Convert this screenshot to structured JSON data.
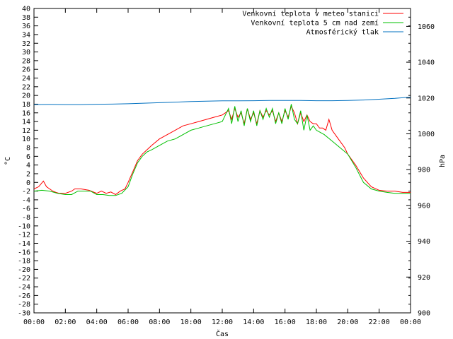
{
  "chart_data": {
    "type": "line",
    "xlabel": "Čas",
    "ylabel": "°C",
    "y2label": "hPa",
    "grid": false,
    "legend_position": "top-right",
    "x_ticks": [
      "00:00",
      "02:00",
      "04:00",
      "06:00",
      "08:00",
      "10:00",
      "12:00",
      "14:00",
      "16:00",
      "18:00",
      "20:00",
      "22:00",
      "00:00"
    ],
    "xlim_hours": [
      0,
      24
    ],
    "ylim": [
      -30,
      40
    ],
    "y_ticks": [
      -30,
      -28,
      -26,
      -24,
      -22,
      -20,
      -18,
      -16,
      -14,
      -12,
      -10,
      -8,
      -6,
      -4,
      -2,
      0,
      2,
      4,
      6,
      8,
      10,
      12,
      14,
      16,
      18,
      20,
      22,
      24,
      26,
      28,
      30,
      32,
      34,
      36,
      38,
      40
    ],
    "y2lim": [
      900,
      1070
    ],
    "y2_ticks": [
      900,
      920,
      940,
      960,
      980,
      1000,
      1020,
      1040,
      1060
    ],
    "series": [
      {
        "name": "Venkovní teplota v meteo stanici",
        "axis": "y",
        "color": "#ff0000",
        "x": [
          0,
          0.3,
          0.6,
          0.8,
          1.0,
          1.2,
          1.4,
          1.6,
          2.0,
          2.4,
          2.6,
          3.0,
          3.5,
          4.0,
          4.3,
          4.6,
          4.9,
          5.2,
          5.5,
          5.8,
          6.0,
          6.3,
          6.6,
          6.9,
          7.2,
          7.5,
          8.0,
          8.5,
          9.0,
          9.5,
          10.0,
          10.5,
          11.0,
          11.5,
          12.0,
          12.2,
          12.4,
          12.6,
          12.8,
          13.0,
          13.2,
          13.4,
          13.6,
          13.8,
          14.0,
          14.2,
          14.4,
          14.6,
          14.8,
          15.0,
          15.2,
          15.4,
          15.6,
          15.8,
          16.0,
          16.2,
          16.4,
          16.6,
          16.8,
          17.0,
          17.2,
          17.4,
          17.6,
          17.8,
          18.0,
          18.2,
          18.4,
          18.6,
          18.8,
          19.0,
          19.2,
          19.4,
          19.6,
          19.8,
          20.0,
          20.5,
          21.0,
          21.5,
          22.0,
          22.5,
          23.0,
          23.5,
          24.0
        ],
        "y": [
          -1.5,
          -1.0,
          0.3,
          -1.0,
          -1.5,
          -2.0,
          -2.3,
          -2.5,
          -2.5,
          -2.0,
          -1.5,
          -1.5,
          -1.8,
          -2.5,
          -2.0,
          -2.5,
          -2.2,
          -2.8,
          -2.0,
          -1.5,
          0.0,
          2.5,
          5.0,
          6.5,
          7.5,
          8.5,
          10.0,
          11.0,
          12.0,
          13.0,
          13.5,
          14.0,
          14.5,
          15.0,
          15.5,
          16.0,
          16.5,
          14.5,
          17.0,
          15.0,
          16.0,
          13.5,
          17.0,
          14.5,
          16.0,
          13.5,
          16.5,
          15.0,
          16.5,
          15.5,
          16.5,
          14.0,
          16.0,
          14.0,
          16.5,
          15.0,
          17.5,
          16.0,
          13.5,
          16.0,
          14.0,
          15.5,
          14.0,
          13.5,
          13.5,
          12.5,
          12.5,
          12.0,
          14.5,
          12.0,
          11.0,
          10.0,
          9.0,
          8.0,
          6.5,
          4.0,
          1.0,
          -1.0,
          -1.8,
          -2.0,
          -2.0,
          -2.3,
          -2.3
        ]
      },
      {
        "name": "Venkovní teplota 5 cm nad zemí",
        "axis": "y",
        "color": "#00c000",
        "x": [
          0,
          0.5,
          1.0,
          1.5,
          2.0,
          2.4,
          2.8,
          3.2,
          3.6,
          4.0,
          4.4,
          4.8,
          5.2,
          5.6,
          6.0,
          6.3,
          6.6,
          6.9,
          7.2,
          7.5,
          8.0,
          8.5,
          9.0,
          9.5,
          10.0,
          10.5,
          11.0,
          11.5,
          12.0,
          12.2,
          12.4,
          12.6,
          12.8,
          13.0,
          13.2,
          13.4,
          13.6,
          13.8,
          14.0,
          14.2,
          14.4,
          14.6,
          14.8,
          15.0,
          15.2,
          15.4,
          15.6,
          15.8,
          16.0,
          16.2,
          16.4,
          16.6,
          16.8,
          17.0,
          17.2,
          17.4,
          17.6,
          17.8,
          18.0,
          18.5,
          19.0,
          19.5,
          20.0,
          20.5,
          21.0,
          21.5,
          22.0,
          22.5,
          23.0,
          23.5,
          24.0
        ],
        "y": [
          -2.0,
          -1.8,
          -2.0,
          -2.5,
          -2.8,
          -2.8,
          -2.0,
          -2.0,
          -2.0,
          -2.8,
          -2.8,
          -3.0,
          -3.0,
          -2.5,
          -1.0,
          2.0,
          4.5,
          6.0,
          7.0,
          7.5,
          8.5,
          9.5,
          10.0,
          11.0,
          12.0,
          12.5,
          13.0,
          13.5,
          14.0,
          15.5,
          17.0,
          13.5,
          17.5,
          14.0,
          16.5,
          13.0,
          17.0,
          14.0,
          16.5,
          13.0,
          16.5,
          14.5,
          17.0,
          15.0,
          17.0,
          13.5,
          16.0,
          13.5,
          17.0,
          14.5,
          18.0,
          14.5,
          13.5,
          16.5,
          12.0,
          15.5,
          12.0,
          13.0,
          12.0,
          11.0,
          9.5,
          8.0,
          6.5,
          3.5,
          0.0,
          -1.5,
          -2.0,
          -2.3,
          -2.5,
          -2.5,
          -2.5
        ]
      },
      {
        "name": "Atmosférický tlak",
        "axis": "y2",
        "color": "#0070c0",
        "x": [
          0,
          1,
          2,
          3,
          4,
          5,
          6,
          7,
          8,
          9,
          10,
          11,
          12,
          13,
          14,
          15,
          16,
          17,
          18,
          19,
          20,
          21,
          22,
          23,
          24
        ],
        "y": [
          1016.3,
          1016.4,
          1016.3,
          1016.3,
          1016.5,
          1016.6,
          1016.8,
          1017.1,
          1017.4,
          1017.7,
          1018.0,
          1018.2,
          1018.4,
          1018.4,
          1018.5,
          1018.6,
          1018.6,
          1018.6,
          1018.5,
          1018.5,
          1018.6,
          1018.9,
          1019.3,
          1019.8,
          1020.5
        ]
      }
    ]
  }
}
